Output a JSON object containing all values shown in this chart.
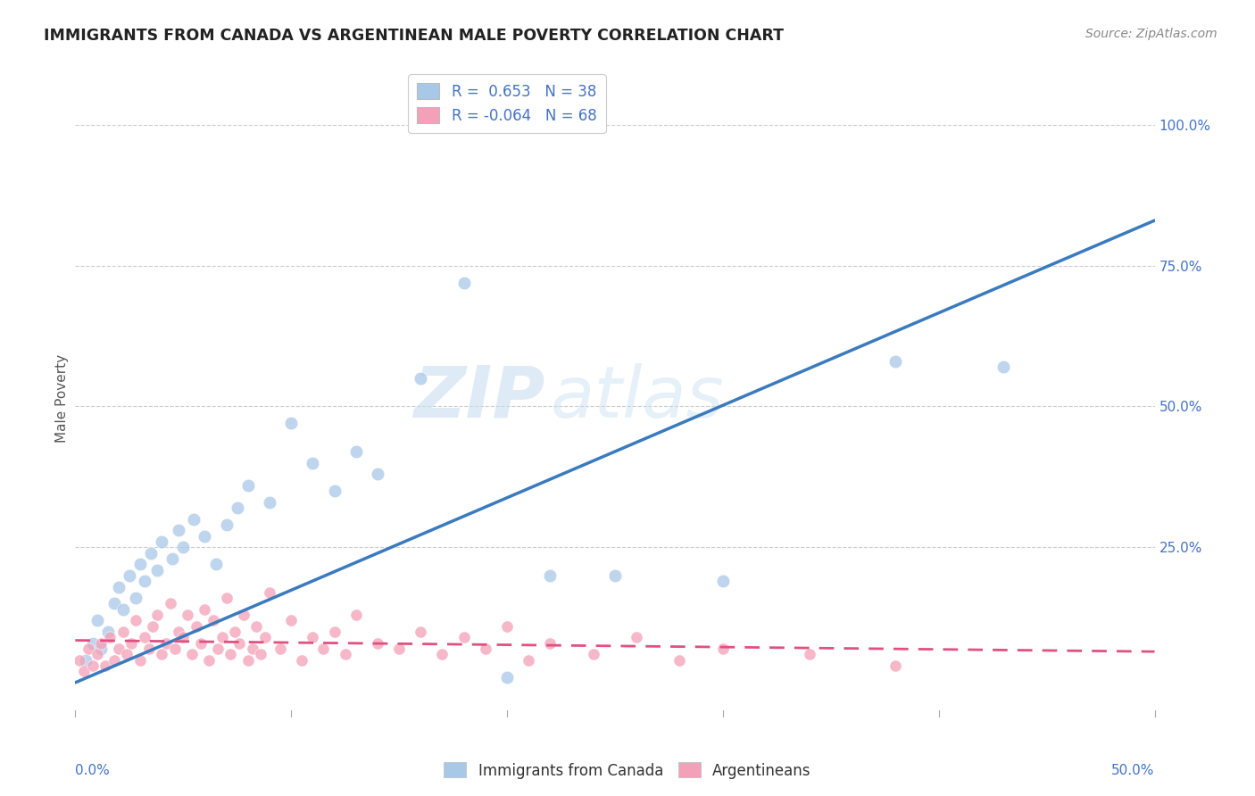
{
  "title": "IMMIGRANTS FROM CANADA VS ARGENTINEAN MALE POVERTY CORRELATION CHART",
  "source": "Source: ZipAtlas.com",
  "ylabel": "Male Poverty",
  "ytick_labels": [
    "25.0%",
    "50.0%",
    "75.0%",
    "100.0%"
  ],
  "ytick_values": [
    0.25,
    0.5,
    0.75,
    1.0
  ],
  "xlim": [
    0.0,
    0.5
  ],
  "ylim": [
    -0.05,
    1.08
  ],
  "blue_color": "#a8c8e8",
  "pink_color": "#f4a0b8",
  "blue_line_color": "#3a7abf",
  "pink_line_color": "#e05080",
  "watermark_text": "ZIPatlas",
  "blue_scatter_x": [
    0.005,
    0.008,
    0.01,
    0.012,
    0.015,
    0.018,
    0.02,
    0.022,
    0.025,
    0.028,
    0.03,
    0.032,
    0.035,
    0.038,
    0.04,
    0.045,
    0.048,
    0.05,
    0.055,
    0.06,
    0.065,
    0.07,
    0.075,
    0.08,
    0.09,
    0.1,
    0.11,
    0.12,
    0.13,
    0.14,
    0.16,
    0.18,
    0.2,
    0.22,
    0.25,
    0.3,
    0.38,
    0.43
  ],
  "blue_scatter_y": [
    0.05,
    0.08,
    0.12,
    0.07,
    0.1,
    0.15,
    0.18,
    0.14,
    0.2,
    0.16,
    0.22,
    0.19,
    0.24,
    0.21,
    0.26,
    0.23,
    0.28,
    0.25,
    0.3,
    0.27,
    0.22,
    0.29,
    0.32,
    0.36,
    0.33,
    0.47,
    0.4,
    0.35,
    0.42,
    0.38,
    0.55,
    0.72,
    0.02,
    0.2,
    0.2,
    0.19,
    0.58,
    0.57
  ],
  "pink_scatter_x": [
    0.002,
    0.004,
    0.006,
    0.008,
    0.01,
    0.012,
    0.014,
    0.016,
    0.018,
    0.02,
    0.022,
    0.024,
    0.026,
    0.028,
    0.03,
    0.032,
    0.034,
    0.036,
    0.038,
    0.04,
    0.042,
    0.044,
    0.046,
    0.048,
    0.05,
    0.052,
    0.054,
    0.056,
    0.058,
    0.06,
    0.062,
    0.064,
    0.066,
    0.068,
    0.07,
    0.072,
    0.074,
    0.076,
    0.078,
    0.08,
    0.082,
    0.084,
    0.086,
    0.088,
    0.09,
    0.095,
    0.1,
    0.105,
    0.11,
    0.115,
    0.12,
    0.125,
    0.13,
    0.14,
    0.15,
    0.16,
    0.17,
    0.18,
    0.19,
    0.2,
    0.21,
    0.22,
    0.24,
    0.26,
    0.28,
    0.3,
    0.34,
    0.38
  ],
  "pink_scatter_y": [
    0.05,
    0.03,
    0.07,
    0.04,
    0.06,
    0.08,
    0.04,
    0.09,
    0.05,
    0.07,
    0.1,
    0.06,
    0.08,
    0.12,
    0.05,
    0.09,
    0.07,
    0.11,
    0.13,
    0.06,
    0.08,
    0.15,
    0.07,
    0.1,
    0.09,
    0.13,
    0.06,
    0.11,
    0.08,
    0.14,
    0.05,
    0.12,
    0.07,
    0.09,
    0.16,
    0.06,
    0.1,
    0.08,
    0.13,
    0.05,
    0.07,
    0.11,
    0.06,
    0.09,
    0.17,
    0.07,
    0.12,
    0.05,
    0.09,
    0.07,
    0.1,
    0.06,
    0.13,
    0.08,
    0.07,
    0.1,
    0.06,
    0.09,
    0.07,
    0.11,
    0.05,
    0.08,
    0.06,
    0.09,
    0.05,
    0.07,
    0.06,
    0.04
  ],
  "blue_trend_x": [
    0.0,
    0.5
  ],
  "blue_trend_y": [
    0.01,
    0.83
  ],
  "pink_trend_x": [
    0.0,
    0.5
  ],
  "pink_trend_y": [
    0.085,
    0.065
  ],
  "pink_trend_dash": [
    6,
    4
  ],
  "grid_color": "#cccccc",
  "background_color": "#ffffff",
  "title_color": "#222222",
  "source_color": "#888888",
  "axis_label_color": "#4472c4",
  "legend_text_color": "#4472c4"
}
